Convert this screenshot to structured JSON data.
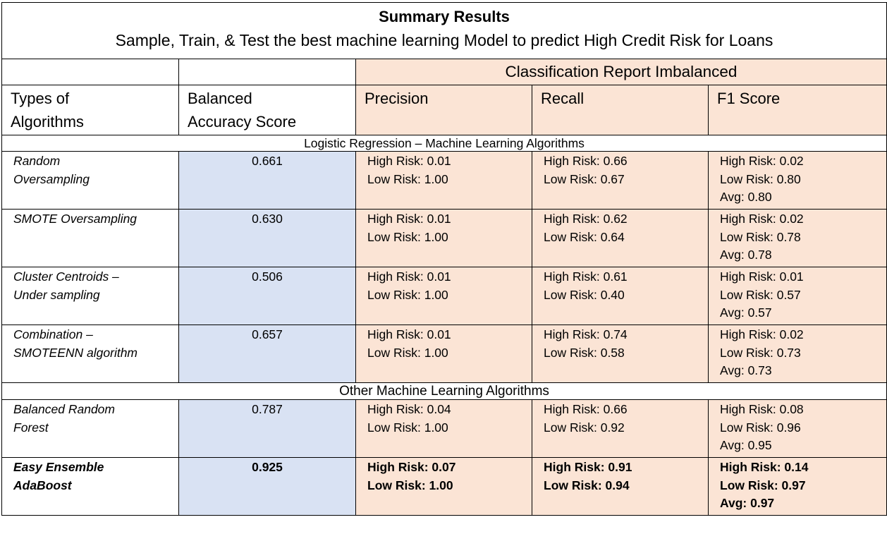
{
  "title": "Summary Results",
  "subtitle": "Sample, Train, & Test the best machine learning Model to predict High Credit Risk for Loans",
  "group_header": "Classification Report Imbalanced",
  "columns": {
    "types": [
      "Types of",
      "Algorithms"
    ],
    "balanced": [
      "Balanced",
      "Accuracy Score"
    ],
    "precision": "Precision",
    "recall": "Recall",
    "f1": "F1 Score"
  },
  "sections": [
    {
      "label": "Logistic Regression – Machine Learning Algorithms",
      "rows": [
        {
          "name": [
            "Random",
            "Oversampling"
          ],
          "score": "0.661",
          "precision": [
            "High Risk: 0.01",
            "Low Risk: 1.00"
          ],
          "recall": [
            "High Risk: 0.66",
            "Low Risk: 0.67"
          ],
          "f1": [
            "High Risk: 0.02",
            "Low Risk: 0.80",
            "Avg: 0.80"
          ]
        },
        {
          "name": [
            "SMOTE Oversampling"
          ],
          "score": "0.630",
          "precision": [
            "High Risk: 0.01",
            "Low Risk: 1.00"
          ],
          "recall": [
            "High Risk: 0.62",
            "Low Risk: 0.64"
          ],
          "f1": [
            "High Risk: 0.02",
            "Low Risk: 0.78",
            "Avg: 0.78"
          ]
        },
        {
          "name": [
            "Cluster Centroids –",
            "Under sampling"
          ],
          "score": "0.506",
          "precision": [
            "High Risk: 0.01",
            "Low Risk: 1.00"
          ],
          "recall": [
            "High Risk: 0.61",
            "Low Risk: 0.40"
          ],
          "f1": [
            "High Risk: 0.01",
            "Low Risk: 0.57",
            "Avg: 0.57"
          ]
        },
        {
          "name": [
            "Combination –",
            "SMOTEENN algorithm"
          ],
          "score": "0.657",
          "precision": [
            "High Risk: 0.01",
            "Low Risk: 1.00"
          ],
          "recall": [
            "High Risk: 0.74",
            "Low Risk: 0.58"
          ],
          "f1": [
            "High Risk: 0.02",
            "Low Risk: 0.73",
            "Avg: 0.73"
          ]
        }
      ]
    },
    {
      "label": "Other Machine Learning Algorithms",
      "rows": [
        {
          "name": [
            "Balanced Random",
            "Forest"
          ],
          "score": "0.787",
          "precision": [
            "High Risk: 0.04",
            "Low Risk: 1.00"
          ],
          "recall": [
            "High Risk: 0.66",
            "Low Risk: 0.92"
          ],
          "f1": [
            "High Risk: 0.08",
            "Low Risk: 0.96",
            "Avg: 0.95"
          ]
        },
        {
          "name": [
            "Easy Ensemble",
            "AdaBoost"
          ],
          "score": "0.925",
          "precision": [
            "High Risk: 0.07",
            "Low Risk: 1.00"
          ],
          "recall": [
            "High Risk: 0.91",
            "Low Risk: 0.94"
          ],
          "f1": [
            "High Risk: 0.14",
            "Low Risk: 0.97",
            "Avg: 0.97"
          ]
        }
      ]
    }
  ],
  "colors": {
    "peach": "#fbe4d5",
    "blue": "#d9e2f3",
    "border": "#000000"
  }
}
